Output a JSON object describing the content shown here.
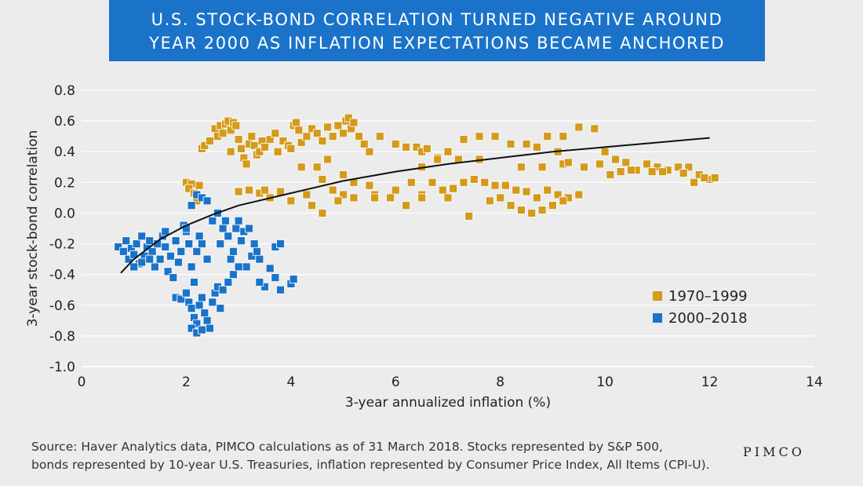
{
  "title": {
    "line1": "U.S. STOCK-BOND CORRELATION TURNED NEGATIVE AROUND",
    "line2": "YEAR 2000 AS INFLATION EXPECTATIONS BECAME ANCHORED"
  },
  "footer": {
    "source_line1": "Source: Haver Analytics data, PIMCO calculations as of 31 March 2018. Stocks represented by S&P 500,",
    "source_line2": "bonds represented by 10-year U.S. Treasuries, inflation represented by Consumer Price Index, All Items (CPI-U).",
    "brand": "PIMCO"
  },
  "chart_data": {
    "type": "scatter",
    "xlabel": "3-year annualized inflation (%)",
    "ylabel": "3-year stock-bond correlation",
    "xlim": [
      0,
      14
    ],
    "ylim": [
      -1.0,
      0.8
    ],
    "x_ticks": [
      "0",
      "2",
      "4",
      "6",
      "8",
      "10",
      "12",
      "14"
    ],
    "y_ticks": [
      "0.8",
      "0.6",
      "0.4",
      "0.2",
      "0.0",
      "-0.2",
      "-0.4",
      "-0.6",
      "-0.8",
      "-1.0"
    ],
    "grid": "horizontal",
    "legend_position": "right",
    "colors": {
      "series1": "#d49a1a",
      "series2": "#1a73c9",
      "trend": "#111111"
    },
    "series": [
      {
        "name": "1970–1999",
        "points": [
          [
            2.0,
            0.2
          ],
          [
            2.1,
            0.19
          ],
          [
            2.05,
            0.16
          ],
          [
            2.15,
            0.13
          ],
          [
            2.25,
            0.18
          ],
          [
            2.2,
            0.08
          ],
          [
            2.3,
            0.42
          ],
          [
            2.35,
            0.44
          ],
          [
            2.45,
            0.47
          ],
          [
            2.55,
            0.55
          ],
          [
            2.6,
            0.5
          ],
          [
            2.65,
            0.57
          ],
          [
            2.7,
            0.52
          ],
          [
            2.75,
            0.58
          ],
          [
            2.8,
            0.6
          ],
          [
            2.85,
            0.54
          ],
          [
            2.9,
            0.59
          ],
          [
            2.95,
            0.57
          ],
          [
            2.85,
            0.4
          ],
          [
            3.0,
            0.48
          ],
          [
            3.05,
            0.42
          ],
          [
            3.1,
            0.36
          ],
          [
            3.15,
            0.32
          ],
          [
            3.2,
            0.45
          ],
          [
            3.25,
            0.5
          ],
          [
            3.3,
            0.44
          ],
          [
            3.35,
            0.38
          ],
          [
            3.4,
            0.4
          ],
          [
            3.45,
            0.47
          ],
          [
            3.5,
            0.43
          ],
          [
            3.6,
            0.48
          ],
          [
            3.7,
            0.52
          ],
          [
            3.75,
            0.4
          ],
          [
            3.85,
            0.47
          ],
          [
            3.95,
            0.44
          ],
          [
            4.0,
            0.42
          ],
          [
            4.05,
            0.57
          ],
          [
            4.1,
            0.59
          ],
          [
            4.15,
            0.54
          ],
          [
            4.2,
            0.46
          ],
          [
            4.3,
            0.5
          ],
          [
            4.4,
            0.55
          ],
          [
            4.5,
            0.52
          ],
          [
            4.6,
            0.47
          ],
          [
            4.7,
            0.56
          ],
          [
            4.8,
            0.5
          ],
          [
            4.9,
            0.57
          ],
          [
            5.0,
            0.52
          ],
          [
            5.05,
            0.6
          ],
          [
            5.1,
            0.62
          ],
          [
            5.15,
            0.55
          ],
          [
            5.2,
            0.59
          ],
          [
            5.3,
            0.5
          ],
          [
            5.4,
            0.45
          ],
          [
            5.5,
            0.4
          ],
          [
            5.7,
            0.5
          ],
          [
            6.0,
            0.45
          ],
          [
            6.2,
            0.43
          ],
          [
            6.4,
            0.43
          ],
          [
            6.5,
            0.4
          ],
          [
            6.6,
            0.42
          ],
          [
            6.8,
            0.36
          ],
          [
            7.0,
            0.4
          ],
          [
            7.3,
            0.48
          ],
          [
            7.6,
            0.5
          ],
          [
            7.9,
            0.5
          ],
          [
            8.2,
            0.45
          ],
          [
            8.5,
            0.45
          ],
          [
            8.7,
            0.43
          ],
          [
            8.9,
            0.5
          ],
          [
            9.1,
            0.4
          ],
          [
            9.2,
            0.5
          ],
          [
            9.5,
            0.56
          ],
          [
            9.8,
            0.55
          ],
          [
            10.0,
            0.4
          ],
          [
            4.5,
            0.3
          ],
          [
            4.7,
            0.35
          ],
          [
            4.2,
            0.3
          ],
          [
            5.0,
            0.25
          ],
          [
            5.2,
            0.2
          ],
          [
            5.5,
            0.18
          ],
          [
            4.6,
            0.22
          ],
          [
            4.8,
            0.15
          ],
          [
            5.0,
            0.12
          ],
          [
            4.3,
            0.12
          ],
          [
            4.0,
            0.08
          ],
          [
            4.4,
            0.05
          ],
          [
            4.6,
            0.0
          ],
          [
            4.9,
            0.08
          ],
          [
            5.2,
            0.1
          ],
          [
            5.6,
            0.12
          ],
          [
            6.0,
            0.15
          ],
          [
            6.3,
            0.2
          ],
          [
            6.5,
            0.12
          ],
          [
            6.7,
            0.2
          ],
          [
            6.9,
            0.15
          ],
          [
            7.1,
            0.16
          ],
          [
            7.3,
            0.2
          ],
          [
            7.5,
            0.22
          ],
          [
            7.7,
            0.2
          ],
          [
            7.9,
            0.18
          ],
          [
            8.1,
            0.18
          ],
          [
            8.3,
            0.15
          ],
          [
            8.5,
            0.14
          ],
          [
            8.7,
            0.1
          ],
          [
            8.9,
            0.15
          ],
          [
            9.1,
            0.12
          ],
          [
            9.3,
            0.1
          ],
          [
            9.5,
            0.12
          ],
          [
            7.8,
            0.08
          ],
          [
            8.0,
            0.1
          ],
          [
            8.2,
            0.05
          ],
          [
            8.4,
            0.02
          ],
          [
            8.6,
            0.0
          ],
          [
            8.8,
            0.02
          ],
          [
            9.0,
            0.05
          ],
          [
            9.2,
            0.08
          ],
          [
            6.2,
            0.05
          ],
          [
            6.5,
            0.1
          ],
          [
            5.6,
            0.1
          ],
          [
            5.9,
            0.1
          ],
          [
            7.4,
            -0.02
          ],
          [
            7.0,
            0.1
          ],
          [
            3.0,
            0.14
          ],
          [
            3.2,
            0.15
          ],
          [
            3.4,
            0.13
          ],
          [
            3.6,
            0.1
          ],
          [
            3.8,
            0.14
          ],
          [
            3.5,
            0.15
          ],
          [
            6.5,
            0.3
          ],
          [
            6.8,
            0.35
          ],
          [
            7.2,
            0.35
          ],
          [
            7.6,
            0.35
          ],
          [
            8.4,
            0.3
          ],
          [
            8.8,
            0.3
          ],
          [
            9.2,
            0.32
          ],
          [
            9.6,
            0.3
          ],
          [
            9.9,
            0.32
          ],
          [
            10.2,
            0.35
          ],
          [
            10.4,
            0.33
          ],
          [
            10.6,
            0.28
          ],
          [
            10.8,
            0.32
          ],
          [
            11.0,
            0.3
          ],
          [
            11.2,
            0.28
          ],
          [
            11.4,
            0.3
          ],
          [
            11.6,
            0.3
          ],
          [
            11.8,
            0.25
          ],
          [
            12.0,
            0.22
          ],
          [
            11.7,
            0.2
          ],
          [
            11.9,
            0.23
          ],
          [
            11.5,
            0.26
          ],
          [
            10.5,
            0.28
          ],
          [
            10.9,
            0.27
          ],
          [
            11.1,
            0.27
          ],
          [
            10.1,
            0.25
          ],
          [
            10.3,
            0.27
          ],
          [
            9.3,
            0.33
          ],
          [
            12.1,
            0.23
          ]
        ]
      },
      {
        "name": "2000–2018",
        "points": [
          [
            0.7,
            -0.22
          ],
          [
            0.8,
            -0.25
          ],
          [
            0.85,
            -0.18
          ],
          [
            0.9,
            -0.3
          ],
          [
            0.95,
            -0.23
          ],
          [
            1.0,
            -0.27
          ],
          [
            1.05,
            -0.2
          ],
          [
            1.1,
            -0.33
          ],
          [
            1.15,
            -0.15
          ],
          [
            1.2,
            -0.28
          ],
          [
            1.25,
            -0.22
          ],
          [
            1.3,
            -0.18
          ],
          [
            1.35,
            -0.25
          ],
          [
            1.4,
            -0.35
          ],
          [
            1.45,
            -0.2
          ],
          [
            1.5,
            -0.3
          ],
          [
            1.55,
            -0.15
          ],
          [
            1.6,
            -0.22
          ],
          [
            1.65,
            -0.38
          ],
          [
            1.7,
            -0.28
          ],
          [
            1.75,
            -0.42
          ],
          [
            1.8,
            -0.18
          ],
          [
            1.85,
            -0.32
          ],
          [
            1.9,
            -0.25
          ],
          [
            1.95,
            -0.08
          ],
          [
            2.0,
            -0.12
          ],
          [
            2.05,
            -0.2
          ],
          [
            2.1,
            -0.35
          ],
          [
            2.15,
            -0.45
          ],
          [
            2.2,
            -0.25
          ],
          [
            2.25,
            -0.15
          ],
          [
            1.8,
            -0.55
          ],
          [
            1.9,
            -0.56
          ],
          [
            2.0,
            -0.52
          ],
          [
            2.05,
            -0.58
          ],
          [
            2.1,
            -0.62
          ],
          [
            2.15,
            -0.68
          ],
          [
            2.2,
            -0.72
          ],
          [
            2.25,
            -0.6
          ],
          [
            2.3,
            -0.55
          ],
          [
            2.35,
            -0.65
          ],
          [
            2.4,
            -0.7
          ],
          [
            2.45,
            -0.75
          ],
          [
            2.5,
            -0.58
          ],
          [
            2.55,
            -0.52
          ],
          [
            2.6,
            -0.48
          ],
          [
            2.65,
            -0.62
          ],
          [
            2.7,
            -0.5
          ],
          [
            2.1,
            -0.75
          ],
          [
            2.2,
            -0.78
          ],
          [
            2.3,
            -0.76
          ],
          [
            2.0,
            -0.1
          ],
          [
            2.1,
            0.05
          ],
          [
            2.2,
            0.12
          ],
          [
            2.3,
            0.1
          ],
          [
            2.4,
            0.08
          ],
          [
            2.5,
            -0.05
          ],
          [
            2.6,
            0.0
          ],
          [
            2.65,
            -0.2
          ],
          [
            2.7,
            -0.1
          ],
          [
            2.75,
            -0.05
          ],
          [
            2.8,
            -0.15
          ],
          [
            2.85,
            -0.3
          ],
          [
            2.9,
            -0.25
          ],
          [
            2.95,
            -0.1
          ],
          [
            3.0,
            -0.05
          ],
          [
            3.05,
            -0.18
          ],
          [
            3.1,
            -0.12
          ],
          [
            3.15,
            -0.35
          ],
          [
            3.2,
            -0.1
          ],
          [
            3.25,
            -0.28
          ],
          [
            3.3,
            -0.2
          ],
          [
            3.4,
            -0.3
          ],
          [
            3.5,
            -0.48
          ],
          [
            3.6,
            -0.36
          ],
          [
            3.7,
            -0.22
          ],
          [
            3.8,
            -0.2
          ],
          [
            2.9,
            -0.4
          ],
          [
            3.0,
            -0.35
          ],
          [
            2.8,
            -0.45
          ],
          [
            3.7,
            -0.42
          ],
          [
            3.8,
            -0.5
          ],
          [
            4.0,
            -0.46
          ],
          [
            4.05,
            -0.43
          ],
          [
            1.0,
            -0.35
          ],
          [
            1.15,
            -0.32
          ],
          [
            1.3,
            -0.3
          ],
          [
            1.6,
            -0.12
          ],
          [
            2.4,
            -0.3
          ],
          [
            2.3,
            -0.2
          ],
          [
            3.4,
            -0.45
          ],
          [
            3.35,
            -0.25
          ]
        ]
      }
    ],
    "trendline": {
      "type": "logarithmic",
      "points": [
        [
          0.75,
          -0.39
        ],
        [
          1,
          -0.3
        ],
        [
          1.5,
          -0.17
        ],
        [
          2,
          -0.08
        ],
        [
          2.5,
          -0.01
        ],
        [
          3,
          0.05
        ],
        [
          4,
          0.13
        ],
        [
          5,
          0.21
        ],
        [
          6,
          0.27
        ],
        [
          7,
          0.32
        ],
        [
          8,
          0.36
        ],
        [
          9,
          0.4
        ],
        [
          10,
          0.43
        ],
        [
          11,
          0.46
        ],
        [
          12,
          0.49
        ]
      ]
    }
  }
}
